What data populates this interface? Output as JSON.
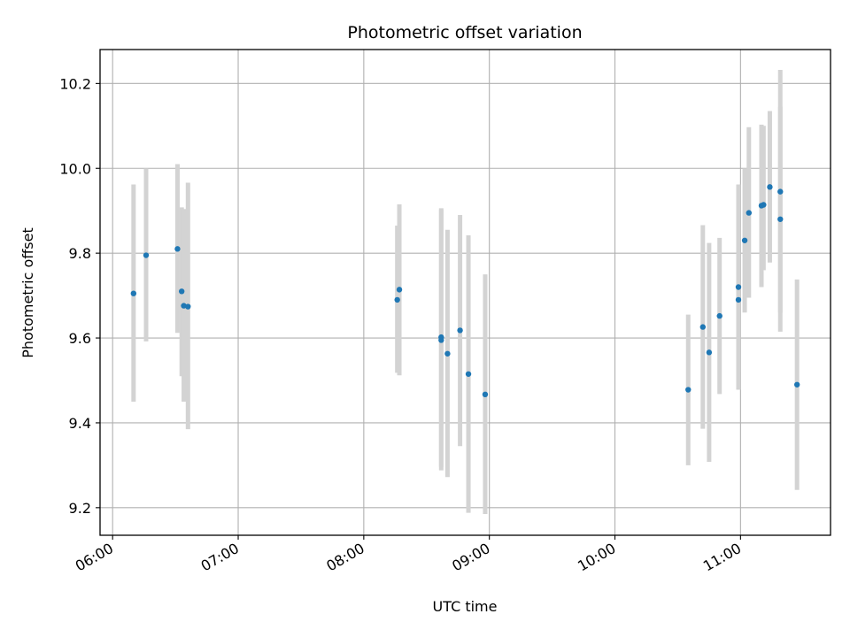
{
  "chart_data": {
    "type": "scatter",
    "title": "Photometric offset variation",
    "xlabel": "UTC time",
    "ylabel": "Photometric offset",
    "x_axis_kind": "time",
    "xlim": [
      "05:54",
      "11:43"
    ],
    "ylim": [
      9.135,
      10.28
    ],
    "grid": true,
    "xticks": [
      "06:00",
      "07:00",
      "08:00",
      "09:00",
      "10:00",
      "11:00"
    ],
    "yticks": [
      "9.2",
      "9.4",
      "9.6",
      "9.8",
      "10.0",
      "10.2"
    ],
    "colors": {
      "point": "#1f77b4",
      "errorbar": "#d3d3d3",
      "grid": "#b0b0b0"
    },
    "points": [
      {
        "x": "06:10",
        "y": 9.705,
        "lo": 9.45,
        "hi": 9.962
      },
      {
        "x": "06:16",
        "y": 9.795,
        "lo": 9.592,
        "hi": 10.0
      },
      {
        "x": "06:31",
        "y": 9.81,
        "lo": 9.612,
        "hi": 10.01
      },
      {
        "x": "06:33",
        "y": 9.71,
        "lo": 9.51,
        "hi": 9.908
      },
      {
        "x": "06:34",
        "y": 9.676,
        "lo": 9.45,
        "hi": 9.904
      },
      {
        "x": "06:36",
        "y": 9.674,
        "lo": 9.385,
        "hi": 9.966
      },
      {
        "x": "08:16",
        "y": 9.69,
        "lo": 9.518,
        "hi": 9.865
      },
      {
        "x": "08:17",
        "y": 9.714,
        "lo": 9.512,
        "hi": 9.915
      },
      {
        "x": "08:37",
        "y": 9.595,
        "lo": 9.288,
        "hi": 9.903
      },
      {
        "x": "08:37",
        "y": 9.602,
        "lo": 9.296,
        "hi": 9.906
      },
      {
        "x": "08:40",
        "y": 9.563,
        "lo": 9.272,
        "hi": 9.855
      },
      {
        "x": "08:46",
        "y": 9.618,
        "lo": 9.345,
        "hi": 9.89
      },
      {
        "x": "08:50",
        "y": 9.515,
        "lo": 9.188,
        "hi": 9.842
      },
      {
        "x": "08:58",
        "y": 9.467,
        "lo": 9.185,
        "hi": 9.75
      },
      {
        "x": "10:35",
        "y": 9.478,
        "lo": 9.3,
        "hi": 9.655
      },
      {
        "x": "10:42",
        "y": 9.626,
        "lo": 9.386,
        "hi": 9.866
      },
      {
        "x": "10:45",
        "y": 9.566,
        "lo": 9.308,
        "hi": 9.824
      },
      {
        "x": "10:50",
        "y": 9.652,
        "lo": 9.468,
        "hi": 9.836
      },
      {
        "x": "10:59",
        "y": 9.72,
        "lo": 9.478,
        "hi": 9.962
      },
      {
        "x": "10:59",
        "y": 9.69,
        "lo": 9.52,
        "hi": 9.86
      },
      {
        "x": "11:02",
        "y": 9.83,
        "lo": 9.66,
        "hi": 10.0
      },
      {
        "x": "11:04",
        "y": 9.895,
        "lo": 9.695,
        "hi": 10.097
      },
      {
        "x": "11:10",
        "y": 9.912,
        "lo": 9.72,
        "hi": 10.103
      },
      {
        "x": "11:11",
        "y": 9.914,
        "lo": 9.76,
        "hi": 10.1
      },
      {
        "x": "11:14",
        "y": 9.956,
        "lo": 9.778,
        "hi": 10.135
      },
      {
        "x": "11:19",
        "y": 9.88,
        "lo": 9.615,
        "hi": 10.145
      },
      {
        "x": "11:19",
        "y": 9.945,
        "lo": 9.66,
        "hi": 10.232
      },
      {
        "x": "11:27",
        "y": 9.49,
        "lo": 9.242,
        "hi": 9.738
      }
    ]
  }
}
